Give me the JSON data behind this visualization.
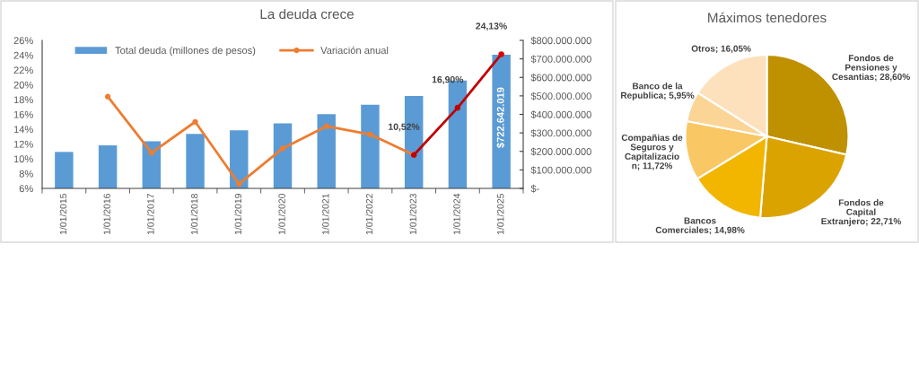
{
  "chart_data": [
    {
      "type": "bar",
      "title": "La deuda crece",
      "categories": [
        "1/01/2015",
        "1/01/2016",
        "1/01/2017",
        "1/01/2018",
        "1/01/2019",
        "1/01/2020",
        "1/01/2021",
        "1/01/2022",
        "1/01/2023",
        "1/01/2024",
        "1/01/2025"
      ],
      "series": [
        {
          "name": "Total deuda (millones de pesos)",
          "type": "bar",
          "axis": "y2",
          "color": "#5b9bd5",
          "values": [
            197000000,
            233000000,
            255000000,
            294000000,
            314000000,
            351000000,
            401000000,
            452000000,
            499000000,
            583000000,
            722642019
          ],
          "value_labels": [
            null,
            null,
            null,
            null,
            null,
            null,
            null,
            null,
            null,
            null,
            "$722.642.019"
          ]
        },
        {
          "name": "Variación anual",
          "type": "line",
          "axis": "y",
          "color": "#ed7d31",
          "values": [
            null,
            18.4,
            10.8,
            15.0,
            6.6,
            11.4,
            14.4,
            13.3,
            10.52,
            null,
            null
          ]
        },
        {
          "type": "line",
          "axis": "y",
          "color": "#c00000",
          "colors": [
            null,
            null,
            null,
            null,
            null,
            null,
            null,
            null,
            "#c00000",
            "#c00000",
            "#e00000"
          ],
          "values": [
            null,
            null,
            null,
            null,
            null,
            null,
            null,
            null,
            10.52,
            16.9,
            24.13
          ],
          "value_labels": [
            null,
            null,
            null,
            null,
            null,
            null,
            null,
            null,
            "10,52%",
            "16,90%",
            "24,13%"
          ]
        }
      ],
      "ylim": [
        6,
        26
      ],
      "yticks": [
        {
          "value": 6,
          "label": "6%"
        },
        {
          "value": 8,
          "label": "8%"
        },
        {
          "value": 10,
          "label": "10%"
        },
        {
          "value": 12,
          "label": "12%"
        },
        {
          "value": 14,
          "label": "14%"
        },
        {
          "value": 16,
          "label": "16%"
        },
        {
          "value": 18,
          "label": "18%"
        },
        {
          "value": 20,
          "label": "20%"
        },
        {
          "value": 22,
          "label": "22%"
        },
        {
          "value": 24,
          "label": "24%"
        },
        {
          "value": 26,
          "label": "26%"
        }
      ],
      "y2lim": [
        0,
        800000000
      ],
      "y2ticks": [
        {
          "value": 0,
          "label": "$-"
        },
        {
          "value": 100000000,
          "label": "$100.000.000"
        },
        {
          "value": 200000000,
          "label": "$200.000.000"
        },
        {
          "value": 300000000,
          "label": "$300.000.000"
        },
        {
          "value": 400000000,
          "label": "$400.000.000"
        },
        {
          "value": 500000000,
          "label": "$500.000.000"
        },
        {
          "value": 600000000,
          "label": "$600.000.000"
        },
        {
          "value": 700000000,
          "label": "$700.000.000"
        },
        {
          "value": 800000000,
          "label": "$800.000.000"
        }
      ],
      "marker": "circle",
      "legend": "top left"
    },
    {
      "type": "pie",
      "title": "Máximos tenedores",
      "categories": [
        "Fondos de Pensiones y Cesantias",
        "Fondos de Capital Extranjero",
        "Bancos Comerciales",
        "Compañias de Seguros y Capitalizacion",
        "Banco de la Republica",
        "Otros"
      ],
      "values": [
        28.6,
        22.71,
        14.98,
        11.72,
        5.95,
        16.05
      ],
      "colors": [
        "#bf9000",
        "#dba300",
        "#f2b600",
        "#f9c764",
        "#fbd596",
        "#fde1bd"
      ],
      "value_labels": [
        "28,60%",
        "22,71%",
        "14,98%",
        "11,72%",
        "5,95%",
        "16,05%"
      ]
    }
  ]
}
